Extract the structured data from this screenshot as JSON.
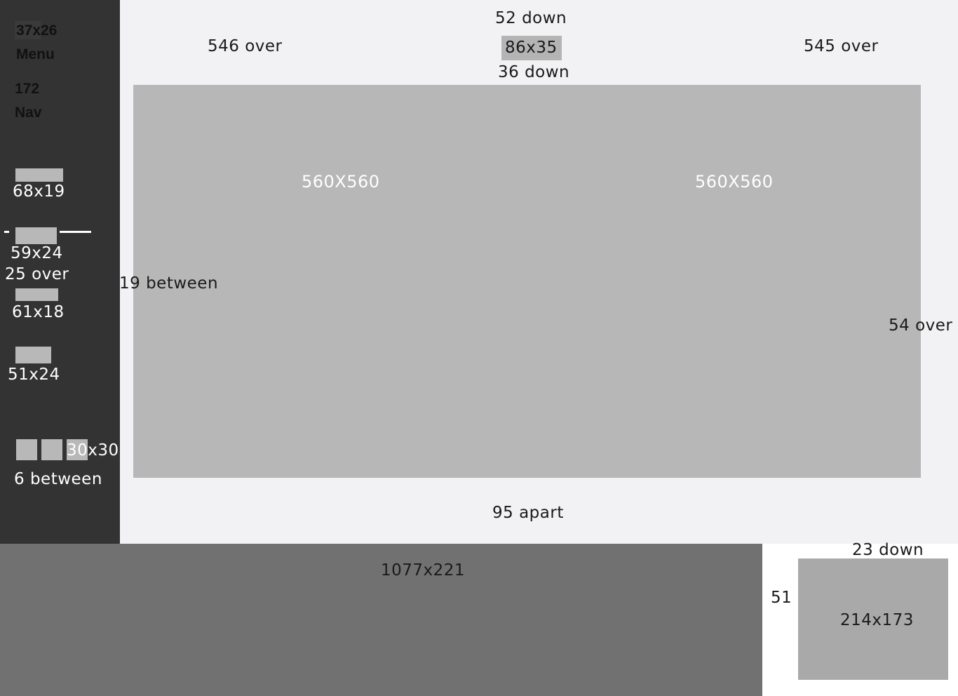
{
  "sidebar": {
    "title_size": "37x26",
    "title_word": "Menu",
    "nav_size": "172",
    "nav_word": "Nav",
    "item_labels": [
      "68x19",
      "59x24",
      "25 over",
      "61x18",
      "51x24"
    ],
    "icon_label_prefix": "30",
    "icon_label_suffix": "x30",
    "spacing_label": "6 between"
  },
  "header": {
    "top_label": "52 down",
    "button_label": "86x35",
    "below_label": "36 down",
    "left_label": "546 over",
    "right_label": "545 over"
  },
  "canvas": {
    "left_label": "560X560",
    "right_label": "560X560",
    "between_label": "19 between",
    "right_offset_label": "54 over",
    "bottom_label": "95 apart"
  },
  "footer": {
    "panel_label": "1077x221",
    "side_top_label": "23 down",
    "side_left_label": "51",
    "side_box_label": "214x173"
  },
  "colors": {
    "sidebar_bg": "#333333",
    "page_bg": "#f2f2f4",
    "canvas_bg": "#b7b7b7",
    "bottom_panel_bg": "#717171",
    "side_box_bg": "#a9a9a9"
  }
}
